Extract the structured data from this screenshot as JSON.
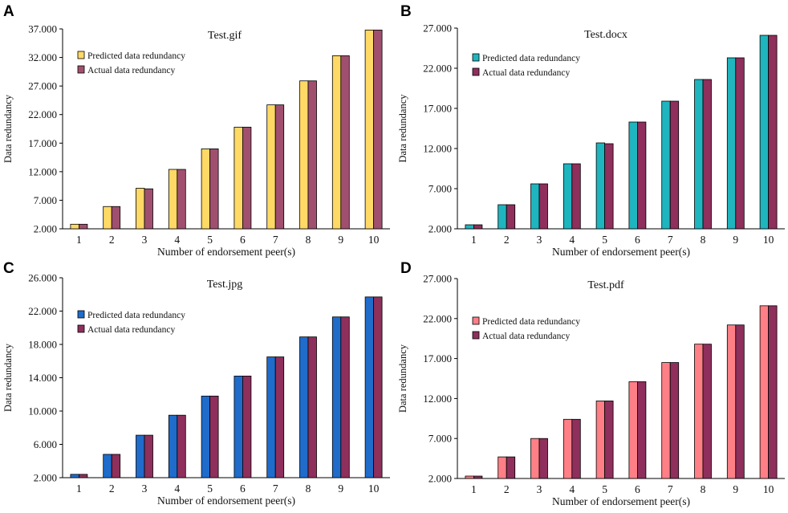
{
  "chart_data": [
    {
      "panel": "A",
      "type": "bar",
      "title": "Test.gif",
      "xlabel": "Number of endorsement peer(s)",
      "ylabel": "Data redundancy",
      "ylim": [
        2,
        37
      ],
      "yticks": [
        2,
        7,
        12,
        17,
        22,
        27,
        32,
        37
      ],
      "ytick_labels": [
        "2.000",
        "7.000",
        "12.000",
        "17.000",
        "22.000",
        "27.000",
        "32.000",
        "37.000"
      ],
      "categories": [
        "1",
        "2",
        "3",
        "4",
        "5",
        "6",
        "7",
        "8",
        "9",
        "10"
      ],
      "series": [
        {
          "name": "Predicted data redundancy",
          "color": "#FFD966",
          "values": [
            2.8,
            5.9,
            9.1,
            12.4,
            16.0,
            19.8,
            23.7,
            27.9,
            32.3,
            36.8
          ]
        },
        {
          "name": "Actual data redundancy",
          "color": "#A0506E",
          "values": [
            2.8,
            5.9,
            9.0,
            12.4,
            16.0,
            19.8,
            23.7,
            27.9,
            32.3,
            36.8
          ]
        }
      ]
    },
    {
      "panel": "B",
      "type": "bar",
      "title": "Test.docx",
      "xlabel": "Number of endorsement peer(s)",
      "ylabel": "Data redundancy",
      "ylim": [
        2,
        27
      ],
      "yticks": [
        2,
        7,
        12,
        17,
        22,
        27
      ],
      "ytick_labels": [
        "2.000",
        "7.000",
        "12.000",
        "17.000",
        "22.000",
        "27.000"
      ],
      "categories": [
        "1",
        "2",
        "3",
        "4",
        "5",
        "6",
        "7",
        "8",
        "9",
        "10"
      ],
      "series": [
        {
          "name": "Predicted data redundancy",
          "color": "#1FB5BE",
          "values": [
            2.5,
            5.0,
            7.6,
            10.1,
            12.7,
            15.3,
            17.9,
            20.6,
            23.3,
            26.1
          ]
        },
        {
          "name": "Actual data redundancy",
          "color": "#8E2F5C",
          "values": [
            2.5,
            5.0,
            7.6,
            10.1,
            12.6,
            15.3,
            17.9,
            20.6,
            23.3,
            26.1
          ]
        }
      ]
    },
    {
      "panel": "C",
      "type": "bar",
      "title": "Test.jpg",
      "xlabel": "Number of endorsement peer(s)",
      "ylabel": "Data redundancy",
      "ylim": [
        2,
        26
      ],
      "yticks": [
        2,
        6,
        10,
        14,
        18,
        22,
        26
      ],
      "ytick_labels": [
        "2.000",
        "6.000",
        "10.000",
        "14.000",
        "18.000",
        "22.000",
        "26.000"
      ],
      "categories": [
        "1",
        "2",
        "3",
        "4",
        "5",
        "6",
        "7",
        "8",
        "9",
        "10"
      ],
      "series": [
        {
          "name": "Predicted data redundancy",
          "color": "#1F6CCB",
          "values": [
            2.4,
            4.8,
            7.1,
            9.5,
            11.8,
            14.2,
            16.5,
            18.9,
            21.3,
            23.7
          ]
        },
        {
          "name": "Actual data redundancy",
          "color": "#8E2F5C",
          "values": [
            2.4,
            4.8,
            7.1,
            9.5,
            11.8,
            14.2,
            16.5,
            18.9,
            21.3,
            23.7
          ]
        }
      ]
    },
    {
      "panel": "D",
      "type": "bar",
      "title": "Test.pdf",
      "xlabel": "Number of endorsement peer(s)",
      "ylabel": "Data redundancy",
      "ylim": [
        2,
        27
      ],
      "yticks": [
        2,
        7,
        12,
        17,
        22,
        27
      ],
      "ytick_labels": [
        "2.000",
        "7.000",
        "12.000",
        "17.000",
        "22.000",
        "27.000"
      ],
      "categories": [
        "1",
        "2",
        "3",
        "4",
        "5",
        "6",
        "7",
        "8",
        "9",
        "10"
      ],
      "series": [
        {
          "name": "Predicted data redundancy",
          "color": "#FF7F86",
          "values": [
            2.3,
            4.7,
            7.0,
            9.4,
            11.7,
            14.1,
            16.5,
            18.8,
            21.2,
            23.6
          ]
        },
        {
          "name": "Actual data redundancy",
          "color": "#8E2F5C",
          "values": [
            2.3,
            4.7,
            7.0,
            9.4,
            11.7,
            14.1,
            16.5,
            18.8,
            21.2,
            23.6
          ]
        }
      ]
    }
  ]
}
